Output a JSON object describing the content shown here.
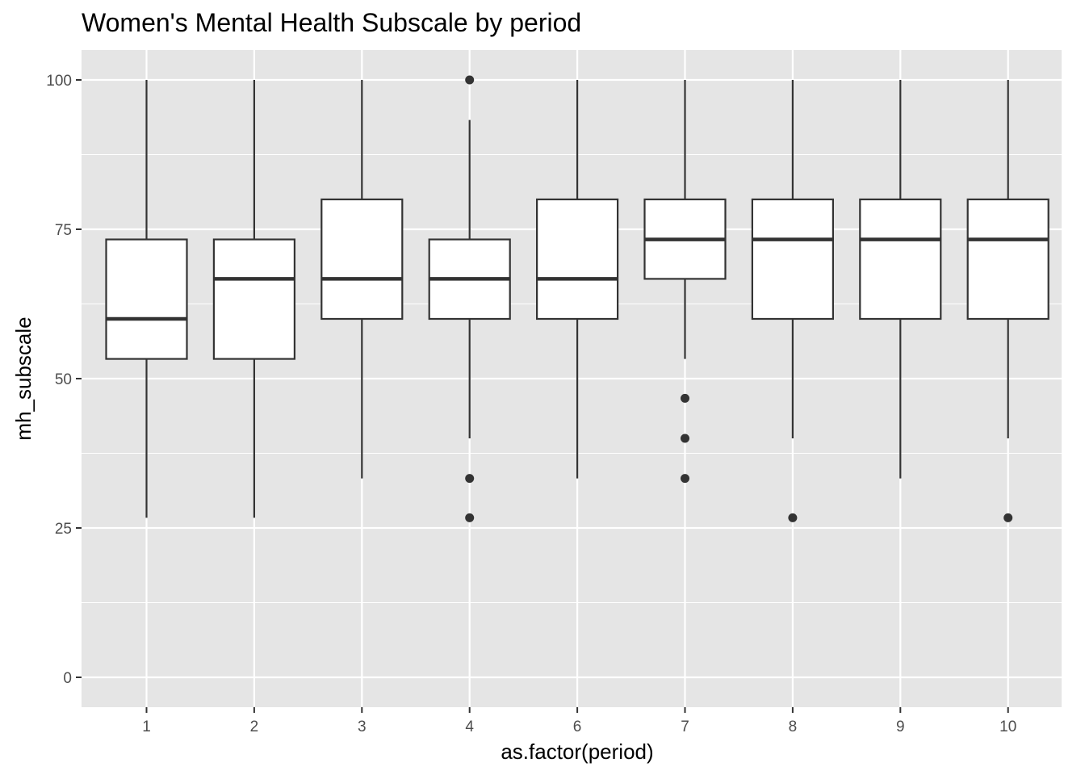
{
  "chart_data": {
    "type": "box",
    "title": "Women's Mental Health Subscale by period",
    "xlabel": "as.factor(period)",
    "ylabel": "mh_subscale",
    "ylim": [
      -5,
      105
    ],
    "yticks": [
      0,
      25,
      50,
      75,
      100
    ],
    "categories": [
      "1",
      "2",
      "3",
      "4",
      "6",
      "7",
      "8",
      "9",
      "10"
    ],
    "boxes": [
      {
        "category": "1",
        "lower_whisker": 26.7,
        "q1": 53.3,
        "median": 60.0,
        "q3": 73.3,
        "upper_whisker": 100,
        "outliers": []
      },
      {
        "category": "2",
        "lower_whisker": 26.7,
        "q1": 53.3,
        "median": 66.7,
        "q3": 73.3,
        "upper_whisker": 100,
        "outliers": []
      },
      {
        "category": "3",
        "lower_whisker": 33.3,
        "q1": 60.0,
        "median": 66.7,
        "q3": 80.0,
        "upper_whisker": 100,
        "outliers": []
      },
      {
        "category": "4",
        "lower_whisker": 40.0,
        "q1": 60.0,
        "median": 66.7,
        "q3": 73.3,
        "upper_whisker": 93.3,
        "outliers": [
          100,
          33.3,
          26.7
        ]
      },
      {
        "category": "6",
        "lower_whisker": 33.3,
        "q1": 60.0,
        "median": 66.7,
        "q3": 80.0,
        "upper_whisker": 100,
        "outliers": []
      },
      {
        "category": "7",
        "lower_whisker": 53.3,
        "q1": 66.7,
        "median": 73.3,
        "q3": 80.0,
        "upper_whisker": 100,
        "outliers": [
          46.7,
          40.0,
          33.3
        ]
      },
      {
        "category": "8",
        "lower_whisker": 40.0,
        "q1": 60.0,
        "median": 73.3,
        "q3": 80.0,
        "upper_whisker": 100,
        "outliers": [
          26.7
        ]
      },
      {
        "category": "9",
        "lower_whisker": 33.3,
        "q1": 60.0,
        "median": 73.3,
        "q3": 80.0,
        "upper_whisker": 100,
        "outliers": []
      },
      {
        "category": "10",
        "lower_whisker": 40.0,
        "q1": 60.0,
        "median": 73.3,
        "q3": 80.0,
        "upper_whisker": 100,
        "outliers": [
          26.7
        ]
      }
    ],
    "grid": true,
    "colors": {
      "panel_background": "#e5e5e5",
      "grid": "#ffffff",
      "box_fill": "#ffffff",
      "box_line": "#333333",
      "outlier": "#333333",
      "tick_label": "#4d4d4d",
      "tick_mark": "#333333"
    }
  }
}
